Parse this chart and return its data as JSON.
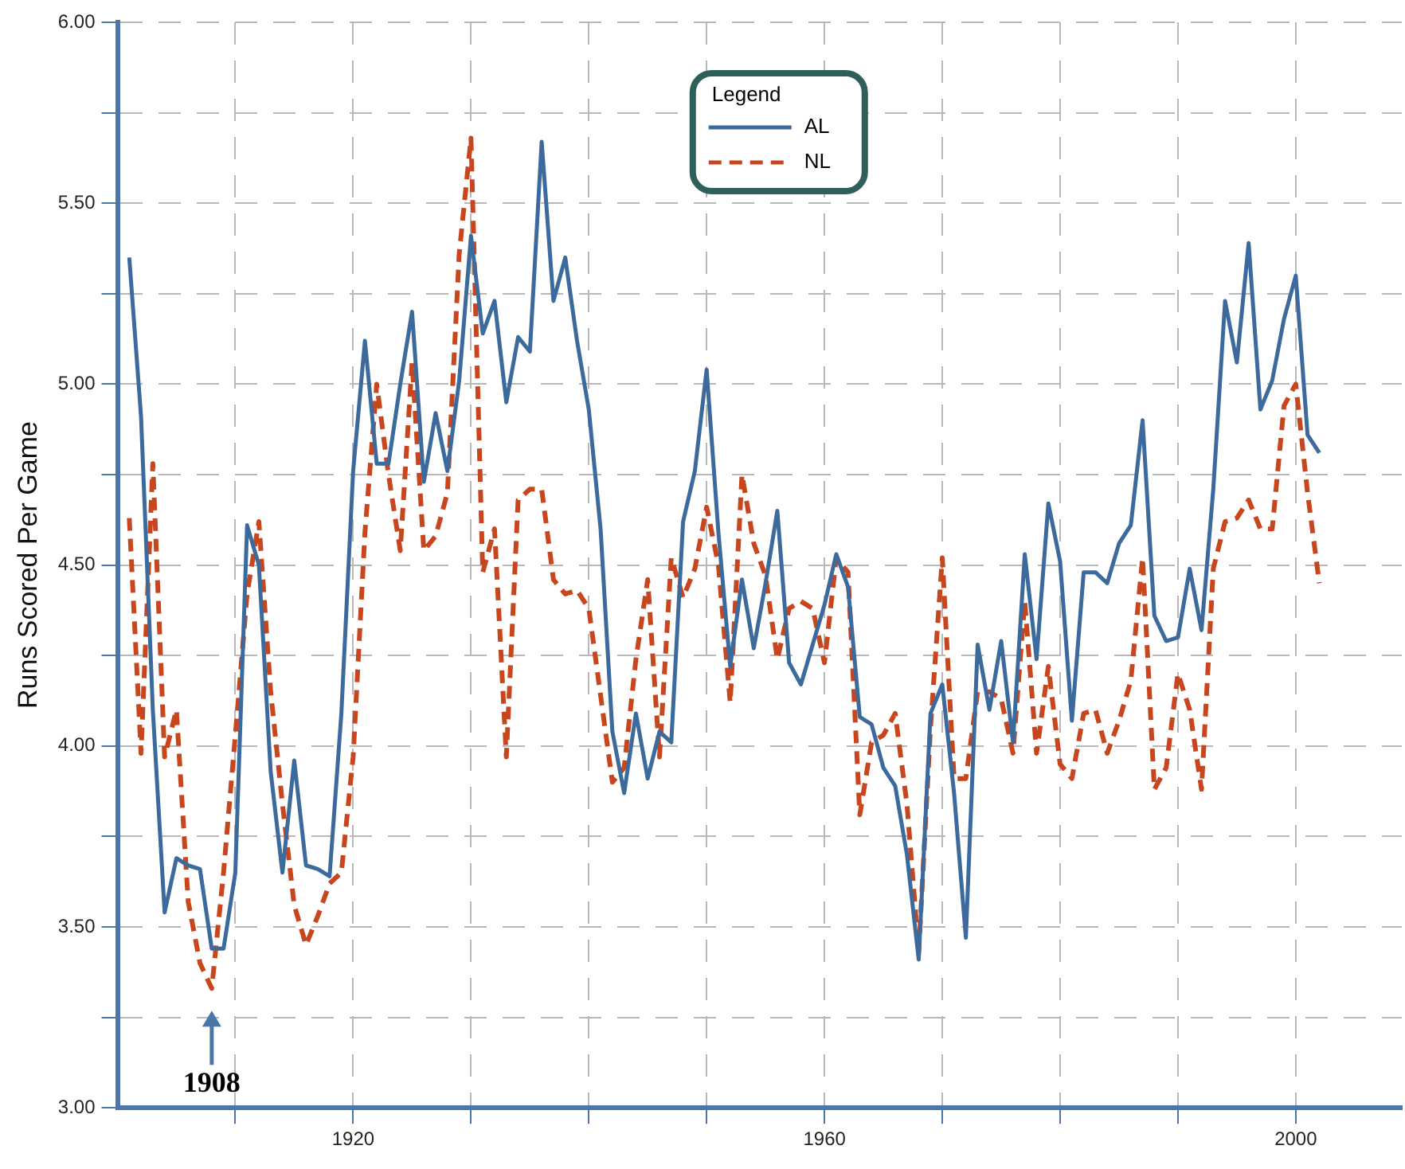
{
  "chart_data": {
    "type": "line",
    "ylabel": "Runs Scored Per Game",
    "legend_title": "Legend",
    "legend": "top",
    "grid": true,
    "marker": "none",
    "x": [
      1901,
      1902,
      1903,
      1904,
      1905,
      1906,
      1907,
      1908,
      1909,
      1910,
      1911,
      1912,
      1913,
      1914,
      1915,
      1916,
      1917,
      1918,
      1919,
      1920,
      1921,
      1922,
      1923,
      1924,
      1925,
      1926,
      1927,
      1928,
      1929,
      1930,
      1931,
      1932,
      1933,
      1934,
      1935,
      1936,
      1937,
      1938,
      1939,
      1940,
      1941,
      1942,
      1943,
      1944,
      1945,
      1946,
      1947,
      1948,
      1949,
      1950,
      1951,
      1952,
      1953,
      1954,
      1955,
      1956,
      1957,
      1958,
      1959,
      1960,
      1961,
      1962,
      1963,
      1964,
      1965,
      1966,
      1967,
      1968,
      1969,
      1970,
      1971,
      1972,
      1973,
      1974,
      1975,
      1976,
      1977,
      1978,
      1979,
      1980,
      1981,
      1982,
      1983,
      1984,
      1985,
      1986,
      1987,
      1988,
      1989,
      1990,
      1991,
      1992,
      1993,
      1994,
      1995,
      1996,
      1997,
      1998,
      1999,
      2000,
      2001,
      2002
    ],
    "xlim": [
      1900,
      2009
    ],
    "xticks": [
      {
        "value": 1910,
        "label": null
      },
      1920,
      {
        "value": 1930,
        "label": null
      },
      {
        "value": 1940,
        "label": null
      },
      {
        "value": 1950,
        "label": null
      },
      1960,
      {
        "value": 1970,
        "label": null
      },
      {
        "value": 1980,
        "label": null
      },
      {
        "value": 1990,
        "label": null
      },
      2000
    ],
    "ylim": [
      3,
      6
    ],
    "yticks": [
      {
        "value": 3,
        "label": "3.00"
      },
      {
        "value": 3.25,
        "label": null
      },
      {
        "value": 3.5,
        "label": "3.50"
      },
      {
        "value": 3.75,
        "label": null
      },
      {
        "value": 4,
        "label": "4.00"
      },
      {
        "value": 4.25,
        "label": null
      },
      {
        "value": 4.5,
        "label": "4.50"
      },
      {
        "value": 4.75,
        "label": null
      },
      {
        "value": 5,
        "label": "5.00"
      },
      {
        "value": 5.25,
        "label": null
      },
      {
        "value": 5.5,
        "label": "5.50"
      },
      {
        "value": 5.75,
        "label": null
      },
      {
        "value": 6,
        "label": "6.00"
      }
    ],
    "annotations": [
      {
        "text": "1908",
        "x": 1908,
        "y": 3.33
      }
    ],
    "series": [
      {
        "name": "AL",
        "color": "#3c6a9c",
        "line_style": "solid",
        "values": [
          5.35,
          4.91,
          4.1,
          3.54,
          3.69,
          3.67,
          3.66,
          3.44,
          3.44,
          3.65,
          4.61,
          4.5,
          3.93,
          3.65,
          3.96,
          3.67,
          3.66,
          3.64,
          4.09,
          4.76,
          5.12,
          4.78,
          4.78,
          5.0,
          5.2,
          4.73,
          4.92,
          4.76,
          5.01,
          5.41,
          5.14,
          5.23,
          4.95,
          5.13,
          5.09,
          5.67,
          5.23,
          5.35,
          5.12,
          4.93,
          4.6,
          4.04,
          3.87,
          4.09,
          3.91,
          4.04,
          4.01,
          4.62,
          4.76,
          5.04,
          4.59,
          4.22,
          4.46,
          4.27,
          4.45,
          4.65,
          4.23,
          4.17,
          4.28,
          4.39,
          4.53,
          4.44,
          4.08,
          4.06,
          3.94,
          3.89,
          3.7,
          3.41,
          4.09,
          4.17,
          3.87,
          3.47,
          4.28,
          4.1,
          4.29,
          4.01,
          4.53,
          4.24,
          4.67,
          4.51,
          4.07,
          4.48,
          4.48,
          4.45,
          4.56,
          4.61,
          4.9,
          4.36,
          4.29,
          4.3,
          4.49,
          4.32,
          4.71,
          5.23,
          5.06,
          5.39,
          4.93,
          5.01,
          5.18,
          5.3,
          4.86,
          4.81
        ]
      },
      {
        "name": "NL",
        "color": "#c8461e",
        "line_style": "dashed",
        "values": [
          4.63,
          3.98,
          4.78,
          3.97,
          4.1,
          3.57,
          3.4,
          3.33,
          3.65,
          4.03,
          4.42,
          4.62,
          4.15,
          3.84,
          3.56,
          3.45,
          3.53,
          3.62,
          3.65,
          3.97,
          4.59,
          5.0,
          4.75,
          4.54,
          5.06,
          4.54,
          4.58,
          4.7,
          5.36,
          5.68,
          4.48,
          4.6,
          3.97,
          4.68,
          4.71,
          4.71,
          4.46,
          4.42,
          4.43,
          4.38,
          4.14,
          3.9,
          3.94,
          4.24,
          4.46,
          3.97,
          4.52,
          4.41,
          4.49,
          4.66,
          4.5,
          4.12,
          4.75,
          4.56,
          4.47,
          4.24,
          4.38,
          4.4,
          4.38,
          4.23,
          4.52,
          4.48,
          3.81,
          4.01,
          4.03,
          4.09,
          3.84,
          3.43,
          4.05,
          4.52,
          3.91,
          3.91,
          4.15,
          4.15,
          4.13,
          3.98,
          4.4,
          3.98,
          4.22,
          3.95,
          3.91,
          4.09,
          4.1,
          3.98,
          4.07,
          4.18,
          4.52,
          3.88,
          3.94,
          4.2,
          4.1,
          3.88,
          4.49,
          4.62,
          4.63,
          4.68,
          4.6,
          4.6,
          4.94,
          5.0,
          4.7,
          4.45
        ]
      }
    ]
  }
}
